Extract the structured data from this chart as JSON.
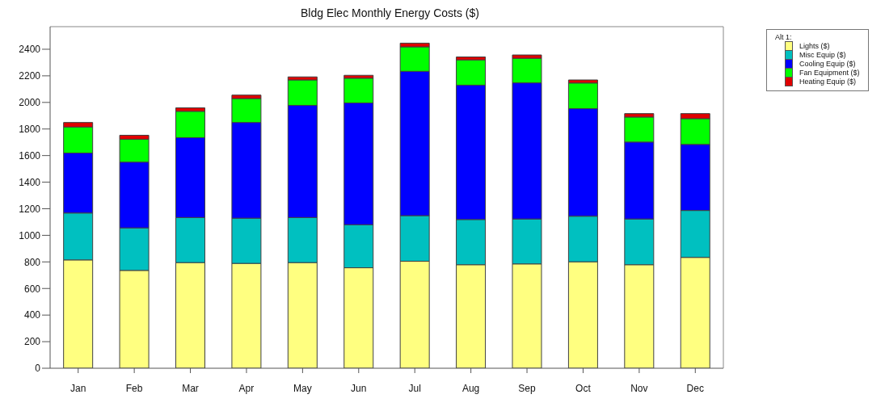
{
  "chart_data": {
    "type": "bar",
    "title": "Bldg Elec Monthly Energy Costs ($)",
    "categories": [
      "Jan",
      "Feb",
      "Mar",
      "Apr",
      "May",
      "Jun",
      "Jul",
      "Aug",
      "Sep",
      "Oct",
      "Nov",
      "Dec"
    ],
    "stacked": true,
    "legend": "right",
    "legend_title": "Alt 1:",
    "grid": false,
    "ylim": [
      0,
      2570
    ],
    "yticks": [
      0,
      200,
      400,
      600,
      800,
      1000,
      1200,
      1400,
      1600,
      1800,
      2000,
      2200,
      2400
    ],
    "series": [
      {
        "name": "Lights ($)",
        "color": "#ffff80",
        "values": [
          815,
          736,
          795,
          789,
          795,
          756,
          805,
          779,
          785,
          801,
          779,
          834
        ]
      },
      {
        "name": "Misc Equip ($)",
        "color": "#00c0c0",
        "values": [
          353,
          320,
          339,
          340,
          339,
          324,
          343,
          340,
          338,
          343,
          344,
          353
        ]
      },
      {
        "name": "Cooling Equip ($)",
        "color": "#0000ff",
        "values": [
          451,
          495,
          601,
          720,
          844,
          916,
          1086,
          1011,
          1024,
          809,
          579,
          497
        ]
      },
      {
        "name": "Fan Equipment ($)",
        "color": "#00ff00",
        "values": [
          196,
          172,
          198,
          180,
          191,
          186,
          184,
          190,
          185,
          193,
          188,
          194
        ]
      },
      {
        "name": "Heating Equip ($)",
        "color": "#e00000",
        "values": [
          34,
          30,
          26,
          26,
          23,
          22,
          28,
          22,
          25,
          23,
          26,
          38
        ]
      }
    ]
  }
}
